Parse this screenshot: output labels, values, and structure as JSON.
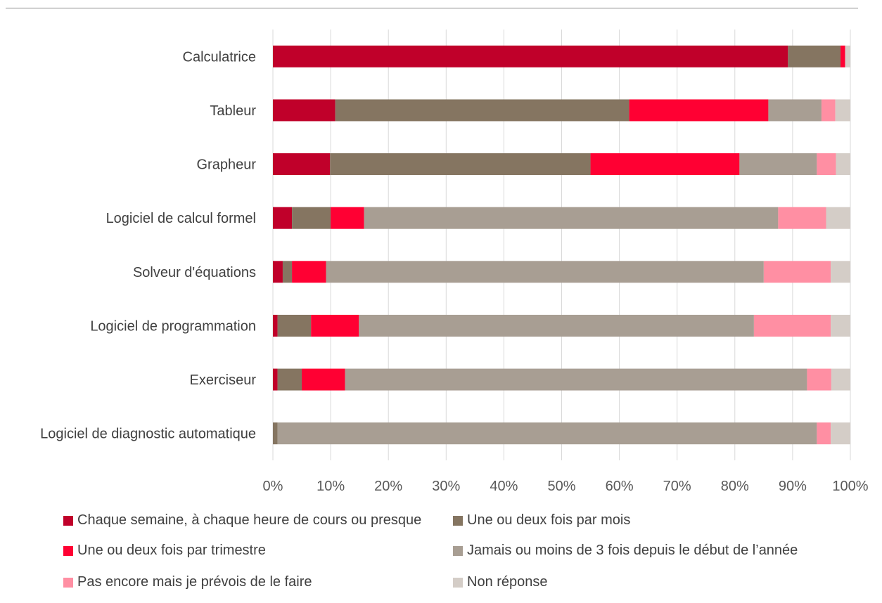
{
  "chart_data": {
    "type": "bar",
    "orientation": "horizontal",
    "stacked": "percent",
    "categories": [
      "Calculatrice",
      "Tableur",
      "Grapheur",
      "Logiciel de calcul formel",
      "Solveur d'équations",
      "Logiciel de programmation",
      "Exerciseur",
      "Logiciel de diagnostic automatique"
    ],
    "series": [
      {
        "name": "Chaque semaine, à chaque heure de cours ou presque",
        "color": "#C0002A",
        "values": [
          89.2,
          10.8,
          9.9,
          3.3,
          1.7,
          0.8,
          0.8,
          0.0
        ]
      },
      {
        "name": "Une ou deux fois par mois",
        "color": "#857561",
        "values": [
          9.1,
          50.9,
          45.1,
          6.7,
          1.6,
          5.8,
          4.2,
          0.8
        ]
      },
      {
        "name": "Une ou deux fois par trimestre",
        "color": "#FF0033",
        "values": [
          0.8,
          24.1,
          25.8,
          5.8,
          5.9,
          8.3,
          7.5,
          0.0
        ]
      },
      {
        "name": "Jamais ou moins de 3 fois depuis le début de l’année",
        "color": "#A89E93",
        "values": [
          0.0,
          9.2,
          13.4,
          71.7,
          75.8,
          68.4,
          80.0,
          93.4
        ]
      },
      {
        "name": "Pas encore mais je prévois de le faire",
        "color": "#FF8FA3",
        "values": [
          0.0,
          2.4,
          3.3,
          8.3,
          11.6,
          13.3,
          4.2,
          2.4
        ]
      },
      {
        "name": "Non réponse",
        "color": "#D4CDC7",
        "values": [
          0.9,
          2.6,
          2.5,
          4.2,
          3.4,
          3.4,
          3.3,
          3.4
        ]
      }
    ],
    "x_ticks": [
      "0%",
      "10%",
      "20%",
      "30%",
      "40%",
      "50%",
      "60%",
      "70%",
      "80%",
      "90%",
      "100%"
    ],
    "xlim": [
      0,
      100
    ],
    "grid": "vertical",
    "legend_position": "bottom",
    "title": "",
    "xlabel": "",
    "ylabel": ""
  }
}
